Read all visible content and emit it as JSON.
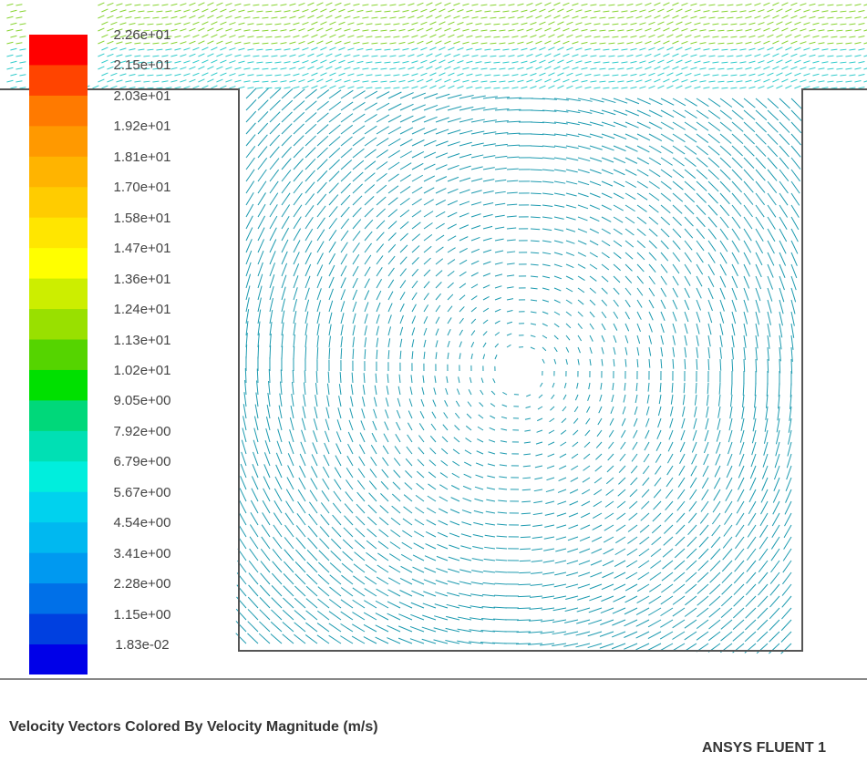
{
  "colorbar": {
    "labels": [
      "2.26e+01",
      "2.15e+01",
      "2.03e+01",
      "1.92e+01",
      "1.81e+01",
      "1.70e+01",
      "1.58e+01",
      "1.47e+01",
      "1.36e+01",
      "1.24e+01",
      "1.13e+01",
      "1.02e+01",
      "9.05e+00",
      "7.92e+00",
      "6.79e+00",
      "5.67e+00",
      "4.54e+00",
      "3.41e+00",
      "2.28e+00",
      "1.15e+00",
      "1.83e-02"
    ],
    "colors": [
      "#ff0000",
      "#ff4400",
      "#ff7a00",
      "#ff9900",
      "#ffb400",
      "#ffcc00",
      "#ffe600",
      "#ffff00",
      "#ccee00",
      "#99e000",
      "#55d400",
      "#00e000",
      "#00d87a",
      "#00e0b4",
      "#00eedd",
      "#00d2ee",
      "#00b8f0",
      "#0099f0",
      "#0070e8",
      "#0040e0",
      "#0000e8"
    ]
  },
  "caption": "Velocity Vectors Colored By Velocity Magnitude (m/s)",
  "brand": "ANSYS FLUENT 1",
  "field_colors": {
    "freestream": "#88d432",
    "shear": "#33cccc",
    "cavity": "#1e9bb0"
  }
}
